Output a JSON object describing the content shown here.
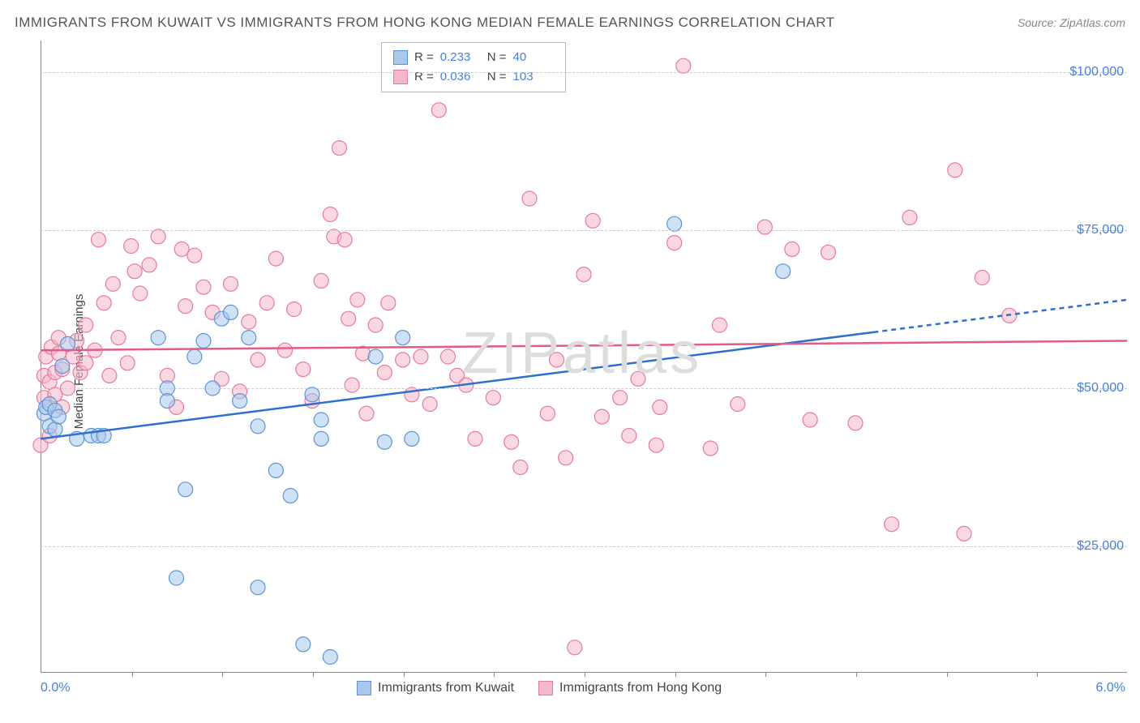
{
  "title": "IMMIGRANTS FROM KUWAIT VS IMMIGRANTS FROM HONG KONG MEDIAN FEMALE EARNINGS CORRELATION CHART",
  "source": "Source: ZipAtlas.com",
  "watermark": "ZIPatlas",
  "y_axis_label": "Median Female Earnings",
  "chart": {
    "type": "scatter",
    "xlim": [
      0,
      6
    ],
    "ylim": [
      5000,
      105000
    ],
    "x_tick_label_left": "0.0%",
    "x_tick_label_right": "6.0%",
    "y_ticks": [
      25000,
      50000,
      75000,
      100000
    ],
    "y_tick_labels": [
      "$25,000",
      "$50,000",
      "$75,000",
      "$100,000"
    ],
    "x_minor_ticks": [
      0.5,
      1.0,
      1.5,
      2.0,
      2.5,
      3.0,
      3.5,
      4.0,
      4.5,
      5.0,
      5.5
    ],
    "grid_color": "#cccccc",
    "background_color": "#ffffff",
    "series": [
      {
        "name": "Immigrants from Kuwait",
        "fill": "#a8c8ec",
        "stroke": "#5e94d4",
        "fill_opacity": 0.55,
        "marker_r": 9,
        "R": "0.233",
        "N": "40",
        "trend": {
          "y_at_x0": 42000,
          "y_at_x6": 64000,
          "color": "#2e6fd0",
          "dash_from_x": 4.6
        },
        "points": [
          [
            0.02,
            46000
          ],
          [
            0.03,
            47000
          ],
          [
            0.05,
            44000
          ],
          [
            0.05,
            47500
          ],
          [
            0.08,
            46500
          ],
          [
            0.08,
            43500
          ],
          [
            0.1,
            45500
          ],
          [
            0.12,
            53500
          ],
          [
            0.15,
            57000
          ],
          [
            0.2,
            42000
          ],
          [
            0.28,
            42500
          ],
          [
            0.32,
            42500
          ],
          [
            0.35,
            42500
          ],
          [
            0.65,
            58000
          ],
          [
            0.7,
            50000
          ],
          [
            0.7,
            48000
          ],
          [
            0.75,
            20000
          ],
          [
            0.8,
            34000
          ],
          [
            0.85,
            55000
          ],
          [
            0.9,
            57500
          ],
          [
            0.95,
            50000
          ],
          [
            1.0,
            61000
          ],
          [
            1.05,
            62000
          ],
          [
            1.1,
            48000
          ],
          [
            1.15,
            58000
          ],
          [
            1.2,
            44000
          ],
          [
            1.2,
            18500
          ],
          [
            1.3,
            37000
          ],
          [
            1.38,
            33000
          ],
          [
            1.45,
            9500
          ],
          [
            1.5,
            49000
          ],
          [
            1.55,
            42000
          ],
          [
            1.55,
            45000
          ],
          [
            1.6,
            7500
          ],
          [
            1.85,
            55000
          ],
          [
            1.9,
            41500
          ],
          [
            2.0,
            58000
          ],
          [
            2.05,
            42000
          ],
          [
            3.5,
            76000
          ],
          [
            4.1,
            68500
          ]
        ]
      },
      {
        "name": "Immigrants from Hong Kong",
        "fill": "#f5b8c9",
        "stroke": "#e77aa0",
        "fill_opacity": 0.55,
        "marker_r": 9,
        "R": "0.036",
        "N": "103",
        "trend": {
          "y_at_x0": 56000,
          "y_at_x6": 57500,
          "color": "#e35a8b",
          "dash_from_x": 6
        },
        "points": [
          [
            0.0,
            41000
          ],
          [
            0.02,
            52000
          ],
          [
            0.02,
            48500
          ],
          [
            0.03,
            55000
          ],
          [
            0.05,
            42500
          ],
          [
            0.05,
            51000
          ],
          [
            0.06,
            56500
          ],
          [
            0.08,
            49000
          ],
          [
            0.08,
            52500
          ],
          [
            0.1,
            55500
          ],
          [
            0.1,
            58000
          ],
          [
            0.12,
            53000
          ],
          [
            0.12,
            47000
          ],
          [
            0.15,
            50000
          ],
          [
            0.18,
            55000
          ],
          [
            0.2,
            57500
          ],
          [
            0.22,
            52500
          ],
          [
            0.25,
            60000
          ],
          [
            0.25,
            54000
          ],
          [
            0.3,
            56000
          ],
          [
            0.32,
            73500
          ],
          [
            0.35,
            63500
          ],
          [
            0.38,
            52000
          ],
          [
            0.4,
            66500
          ],
          [
            0.43,
            58000
          ],
          [
            0.48,
            54000
          ],
          [
            0.5,
            72500
          ],
          [
            0.52,
            68500
          ],
          [
            0.55,
            65000
          ],
          [
            0.6,
            69500
          ],
          [
            0.65,
            74000
          ],
          [
            0.7,
            52000
          ],
          [
            0.75,
            47000
          ],
          [
            0.78,
            72000
          ],
          [
            0.8,
            63000
          ],
          [
            0.85,
            71000
          ],
          [
            0.9,
            66000
          ],
          [
            0.95,
            62000
          ],
          [
            1.0,
            51500
          ],
          [
            1.05,
            66500
          ],
          [
            1.1,
            49500
          ],
          [
            1.15,
            60500
          ],
          [
            1.2,
            54500
          ],
          [
            1.25,
            63500
          ],
          [
            1.3,
            70500
          ],
          [
            1.35,
            56000
          ],
          [
            1.4,
            62500
          ],
          [
            1.45,
            53000
          ],
          [
            1.5,
            48000
          ],
          [
            1.55,
            67000
          ],
          [
            1.6,
            77500
          ],
          [
            1.62,
            74000
          ],
          [
            1.65,
            88000
          ],
          [
            1.68,
            73500
          ],
          [
            1.7,
            61000
          ],
          [
            1.72,
            50500
          ],
          [
            1.75,
            64000
          ],
          [
            1.78,
            55500
          ],
          [
            1.8,
            46000
          ],
          [
            1.85,
            60000
          ],
          [
            1.9,
            52500
          ],
          [
            1.92,
            63500
          ],
          [
            2.0,
            54500
          ],
          [
            2.05,
            49000
          ],
          [
            2.1,
            55000
          ],
          [
            2.15,
            47500
          ],
          [
            2.2,
            94000
          ],
          [
            2.25,
            55000
          ],
          [
            2.3,
            52000
          ],
          [
            2.35,
            50500
          ],
          [
            2.4,
            42000
          ],
          [
            2.5,
            48500
          ],
          [
            2.6,
            41500
          ],
          [
            2.65,
            37500
          ],
          [
            2.7,
            80000
          ],
          [
            2.8,
            46000
          ],
          [
            2.85,
            54500
          ],
          [
            2.9,
            39000
          ],
          [
            2.95,
            9000
          ],
          [
            3.0,
            68000
          ],
          [
            3.05,
            76500
          ],
          [
            3.1,
            45500
          ],
          [
            3.2,
            48500
          ],
          [
            3.25,
            42500
          ],
          [
            3.3,
            51500
          ],
          [
            3.4,
            41000
          ],
          [
            3.42,
            47000
          ],
          [
            3.5,
            73000
          ],
          [
            3.55,
            101000
          ],
          [
            3.7,
            40500
          ],
          [
            3.75,
            60000
          ],
          [
            3.85,
            47500
          ],
          [
            4.0,
            75500
          ],
          [
            4.15,
            72000
          ],
          [
            4.25,
            45000
          ],
          [
            4.35,
            71500
          ],
          [
            4.5,
            44500
          ],
          [
            4.7,
            28500
          ],
          [
            4.8,
            77000
          ],
          [
            5.05,
            84500
          ],
          [
            5.1,
            27000
          ],
          [
            5.2,
            67500
          ],
          [
            5.35,
            61500
          ]
        ]
      }
    ]
  },
  "legend_top": {
    "rows": [
      {
        "swatch_fill": "#a8c8ec",
        "swatch_stroke": "#5e94d4",
        "R_label": "R =",
        "R": "0.233",
        "N_label": "N =",
        "N": "40"
      },
      {
        "swatch_fill": "#f5b8c9",
        "swatch_stroke": "#e77aa0",
        "R_label": "R =",
        "R": "0.036",
        "N_label": "N =",
        "N": "103"
      }
    ]
  },
  "legend_bottom": {
    "items": [
      {
        "swatch_fill": "#a8c8ec",
        "swatch_stroke": "#5e94d4",
        "label": "Immigrants from Kuwait"
      },
      {
        "swatch_fill": "#f5b8c9",
        "swatch_stroke": "#e77aa0",
        "label": "Immigrants from Hong Kong"
      }
    ]
  }
}
